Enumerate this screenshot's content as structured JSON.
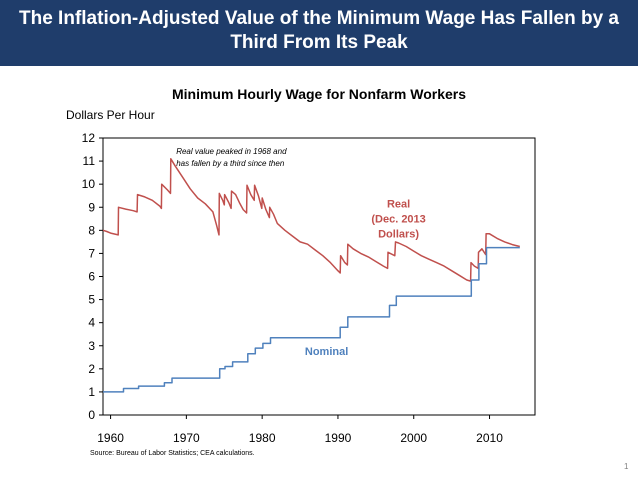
{
  "slide": {
    "title": "The Inflation-Adjusted Value of the Minimum Wage Has Fallen by a Third From Its Peak",
    "page_number": "1",
    "source": "Source: Bureau of Labor Statistics; CEA calculations."
  },
  "colors": {
    "banner": "#1f3d6b",
    "real": "#c0504d",
    "nominal": "#4f81bd"
  },
  "chart_data": {
    "type": "line",
    "title": "Minimum Hourly Wage for Nonfarm Workers",
    "ylabel": "Dollars Per Hour",
    "xlabel": "",
    "xlim": [
      1959,
      2016
    ],
    "ylim": [
      0,
      12
    ],
    "xticks": [
      1960,
      1970,
      1980,
      1990,
      2000,
      2010
    ],
    "yticks": [
      0,
      1,
      2,
      3,
      4,
      5,
      6,
      7,
      8,
      9,
      10,
      11,
      12
    ],
    "grid": false,
    "annotations": [
      {
        "text_lines": [
          "Real value peaked in 1968 and",
          "has fallen by a third since then"
        ],
        "x": 1968,
        "y": 11.3
      },
      {
        "text_lines": [
          "Real",
          "(Dec. 2013",
          "Dollars)"
        ],
        "series": "Real",
        "x": 1998,
        "y": 9
      },
      {
        "text_lines": [
          "Nominal"
        ],
        "series": "Nominal",
        "x": 1988.5,
        "y": 2.6
      }
    ],
    "series": [
      {
        "name": "Real",
        "color": "#c0504d",
        "step": false,
        "points": [
          [
            1959.0,
            8.0
          ],
          [
            1959.5,
            7.95
          ],
          [
            1960.0,
            7.88
          ],
          [
            1960.5,
            7.84
          ],
          [
            1961.0,
            7.8
          ],
          [
            1961.05,
            9.0
          ],
          [
            1962.0,
            8.92
          ],
          [
            1963.0,
            8.85
          ],
          [
            1963.5,
            8.8
          ],
          [
            1963.55,
            9.55
          ],
          [
            1964.5,
            9.45
          ],
          [
            1965.5,
            9.3
          ],
          [
            1966.5,
            9.05
          ],
          [
            1966.7,
            8.95
          ],
          [
            1966.75,
            10.0
          ],
          [
            1967.5,
            9.75
          ],
          [
            1967.9,
            9.6
          ],
          [
            1967.95,
            11.1
          ],
          [
            1968.5,
            10.8
          ],
          [
            1969.5,
            10.3
          ],
          [
            1970.5,
            9.8
          ],
          [
            1971.5,
            9.4
          ],
          [
            1972.5,
            9.15
          ],
          [
            1973.5,
            8.8
          ],
          [
            1974.0,
            8.2
          ],
          [
            1974.3,
            7.8
          ],
          [
            1974.35,
            9.6
          ],
          [
            1974.8,
            9.3
          ],
          [
            1975.0,
            9.1
          ],
          [
            1975.05,
            9.55
          ],
          [
            1975.6,
            9.2
          ],
          [
            1975.9,
            8.95
          ],
          [
            1975.95,
            9.7
          ],
          [
            1976.5,
            9.55
          ],
          [
            1977.0,
            9.2
          ],
          [
            1977.5,
            8.9
          ],
          [
            1977.95,
            8.75
          ],
          [
            1978.0,
            9.95
          ],
          [
            1978.5,
            9.55
          ],
          [
            1978.95,
            9.3
          ],
          [
            1979.0,
            9.95
          ],
          [
            1979.5,
            9.5
          ],
          [
            1979.95,
            8.95
          ],
          [
            1980.0,
            9.4
          ],
          [
            1980.5,
            8.9
          ],
          [
            1980.95,
            8.55
          ],
          [
            1981.0,
            9.0
          ],
          [
            1981.5,
            8.7
          ],
          [
            1982.0,
            8.3
          ],
          [
            1983.0,
            8.0
          ],
          [
            1984.0,
            7.75
          ],
          [
            1985.0,
            7.5
          ],
          [
            1986.0,
            7.4
          ],
          [
            1987.0,
            7.15
          ],
          [
            1988.0,
            6.9
          ],
          [
            1989.0,
            6.6
          ],
          [
            1990.0,
            6.25
          ],
          [
            1990.3,
            6.15
          ],
          [
            1990.35,
            6.9
          ],
          [
            1990.9,
            6.6
          ],
          [
            1991.25,
            6.5
          ],
          [
            1991.3,
            7.4
          ],
          [
            1992.0,
            7.2
          ],
          [
            1993.0,
            7.0
          ],
          [
            1994.0,
            6.85
          ],
          [
            1995.0,
            6.65
          ],
          [
            1996.0,
            6.45
          ],
          [
            1996.55,
            6.35
          ],
          [
            1996.6,
            7.05
          ],
          [
            1997.5,
            6.9
          ],
          [
            1997.6,
            7.5
          ],
          [
            1998.0,
            7.45
          ],
          [
            1999.0,
            7.3
          ],
          [
            2000.0,
            7.1
          ],
          [
            2001.0,
            6.9
          ],
          [
            2002.0,
            6.75
          ],
          [
            2003.0,
            6.6
          ],
          [
            2004.0,
            6.45
          ],
          [
            2005.0,
            6.25
          ],
          [
            2006.0,
            6.05
          ],
          [
            2007.0,
            5.85
          ],
          [
            2007.5,
            5.8
          ],
          [
            2007.55,
            6.6
          ],
          [
            2008.0,
            6.45
          ],
          [
            2008.5,
            6.35
          ],
          [
            2008.55,
            7.05
          ],
          [
            2009.0,
            7.2
          ],
          [
            2009.5,
            6.95
          ],
          [
            2009.55,
            7.85
          ],
          [
            2010.0,
            7.85
          ],
          [
            2011.0,
            7.65
          ],
          [
            2012.0,
            7.5
          ],
          [
            2013.0,
            7.38
          ],
          [
            2014.0,
            7.3
          ]
        ]
      },
      {
        "name": "Nominal",
        "color": "#4f81bd",
        "step": true,
        "points": [
          [
            1959.0,
            1.0
          ],
          [
            1961.7,
            1.15
          ],
          [
            1963.7,
            1.25
          ],
          [
            1967.1,
            1.4
          ],
          [
            1968.1,
            1.6
          ],
          [
            1974.4,
            2.0
          ],
          [
            1975.1,
            2.1
          ],
          [
            1976.1,
            2.3
          ],
          [
            1978.1,
            2.65
          ],
          [
            1979.1,
            2.9
          ],
          [
            1980.1,
            3.1
          ],
          [
            1981.1,
            3.35
          ],
          [
            1990.3,
            3.8
          ],
          [
            1991.3,
            4.25
          ],
          [
            1996.8,
            4.75
          ],
          [
            1997.7,
            5.15
          ],
          [
            2007.6,
            5.85
          ],
          [
            2008.6,
            6.55
          ],
          [
            2009.6,
            7.25
          ],
          [
            2014.0,
            7.25
          ]
        ]
      }
    ]
  }
}
